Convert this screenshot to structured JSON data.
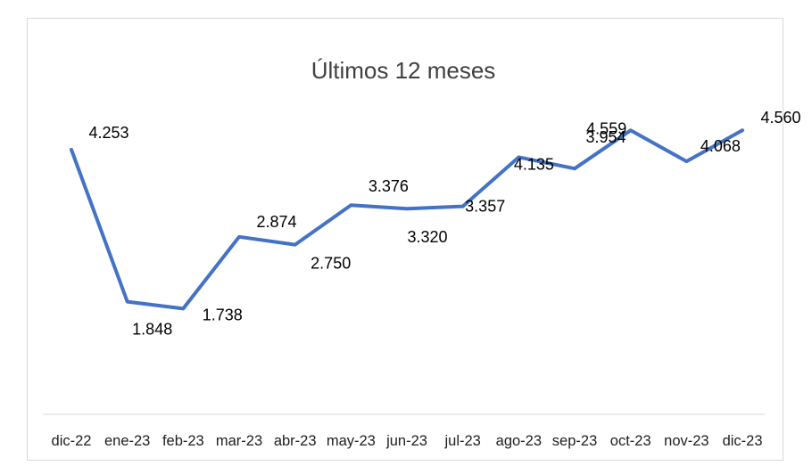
{
  "chart_data": {
    "type": "line",
    "title": "Últimos 12 meses",
    "xlabel": "",
    "ylabel": "",
    "categories": [
      "dic-22",
      "ene-23",
      "feb-23",
      "mar-23",
      "abr-23",
      "may-23",
      "jun-23",
      "jul-23",
      "ago-23",
      "sep-23",
      "oct-23",
      "nov-23",
      "dic-23"
    ],
    "series": [
      {
        "values": [
          4.253,
          1.848,
          1.738,
          2.874,
          2.75,
          3.376,
          3.32,
          3.357,
          4.135,
          3.954,
          4.559,
          4.068,
          4.56
        ]
      }
    ],
    "data_labels": [
      "4.253",
      "1.848",
      "1.738",
      "2.874",
      "2.750",
      "3.376",
      "3.320",
      "3.357",
      "4.135",
      "3.954",
      "4.559",
      "4.068",
      "4.560"
    ],
    "grid": false,
    "legend": "none",
    "line_color": "#4472c4"
  }
}
